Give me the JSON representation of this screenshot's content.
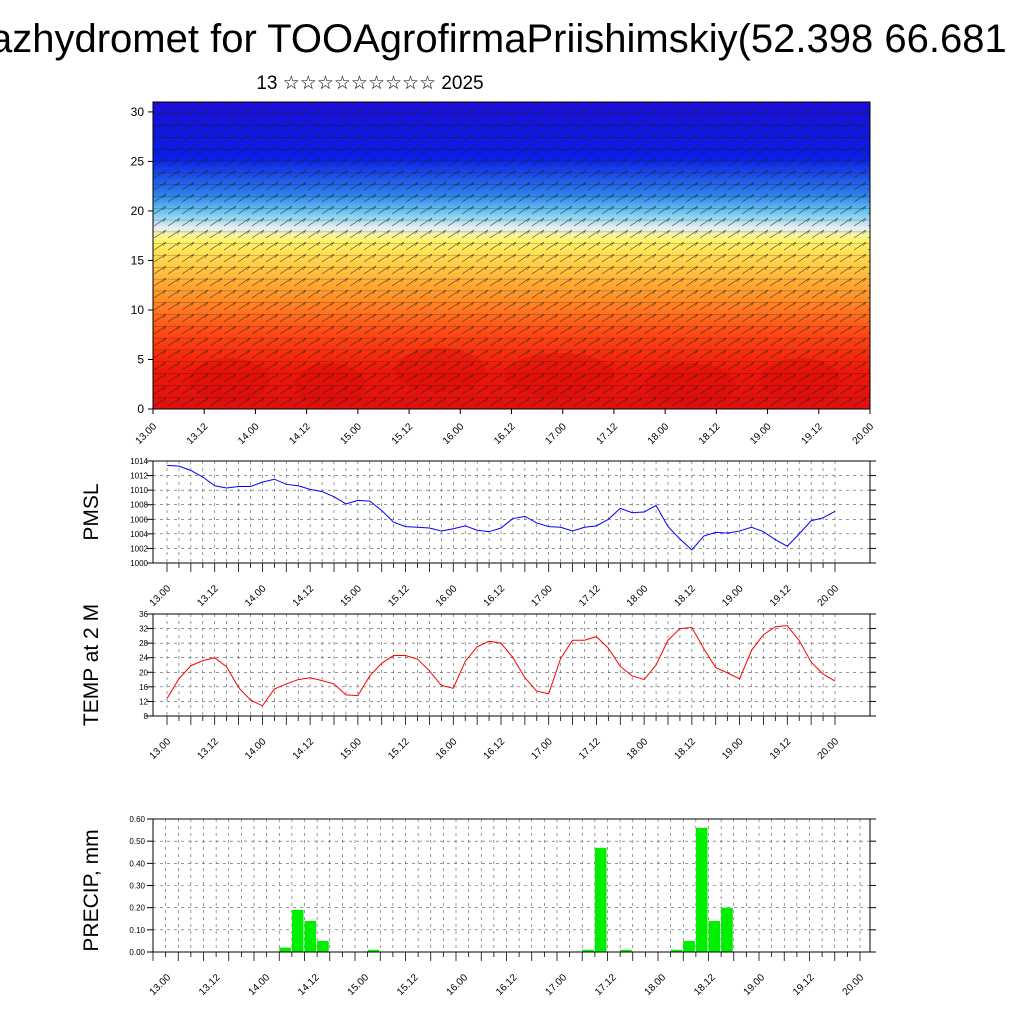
{
  "header": {
    "title": "azhydromet for TOOAgrofirmaPriishimskiy(52.398 66.681",
    "subtitle": "13 ☆☆☆☆☆☆☆☆☆ 2025"
  },
  "chart_data": [
    {
      "type": "heatmap",
      "id": "cross-section",
      "x_ticks": [
        "13.00",
        "13.12",
        "14.00",
        "14.12",
        "15.00",
        "15.12",
        "16.00",
        "16.12",
        "17.00",
        "17.12",
        "18.00",
        "18.12",
        "19.00",
        "19.12",
        "20.00"
      ],
      "y_ticks": [
        0,
        5,
        10,
        15,
        20,
        25,
        30
      ],
      "ylim": [
        0,
        31
      ],
      "colormap": "blue-cyan-white-yellow-orange-red (top to bottom)",
      "overlay": "wind barbs"
    },
    {
      "type": "line",
      "id": "pmsl",
      "ylabel": "PMSL",
      "x_ticks": [
        "13.00",
        "13.12",
        "14.00",
        "14.12",
        "15.00",
        "15.12",
        "16.00",
        "16.12",
        "17.00",
        "17.12",
        "18.00",
        "18.12",
        "19.00",
        "19.12",
        "20.00"
      ],
      "y_ticks": [
        1000,
        1002,
        1004,
        1006,
        1008,
        1010,
        1012,
        1014
      ],
      "ylim": [
        1000,
        1014
      ],
      "series_color": "#0000ff",
      "values": [
        1013.4,
        1013.3,
        1012.7,
        1011.8,
        1010.6,
        1010.3,
        1010.5,
        1010.5,
        1011.1,
        1011.5,
        1010.8,
        1010.6,
        1010.1,
        1009.8,
        1009.1,
        1008.1,
        1008.6,
        1008.5,
        1007.2,
        1005.6,
        1005.0,
        1004.9,
        1004.8,
        1004.4,
        1004.7,
        1005.1,
        1004.5,
        1004.3,
        1004.8,
        1006.1,
        1006.4,
        1005.5,
        1005.0,
        1004.9,
        1004.4,
        1004.9,
        1005.1,
        1006.0,
        1007.5,
        1006.9,
        1007.0,
        1007.9,
        1005.0,
        1003.3,
        1001.8,
        1003.7,
        1004.2,
        1004.1,
        1004.4,
        1004.9,
        1004.3,
        1003.2,
        1002.3,
        1004.0,
        1005.8,
        1006.2,
        1007.1
      ]
    },
    {
      "type": "line",
      "id": "temp2m",
      "ylabel": "TEMP at 2 M",
      "x_ticks": [
        "13.00",
        "13.12",
        "14.00",
        "14.12",
        "15.00",
        "15.12",
        "16.00",
        "16.12",
        "17.00",
        "17.12",
        "18.00",
        "18.12",
        "19.00",
        "19.12",
        "20.00"
      ],
      "y_ticks": [
        8,
        12,
        16,
        20,
        24,
        28,
        32,
        36
      ],
      "ylim": [
        8,
        36
      ],
      "series_color": "#ff0000",
      "values": [
        12.8,
        18.2,
        21.8,
        23.2,
        24.0,
        21.5,
        15.8,
        12.4,
        10.8,
        15.4,
        16.8,
        18.0,
        18.5,
        17.7,
        16.8,
        13.8,
        13.6,
        19.0,
        22.5,
        24.6,
        24.6,
        23.6,
        20.4,
        16.4,
        15.6,
        23.0,
        27.0,
        28.5,
        28.0,
        24.0,
        18.5,
        14.8,
        14.1,
        23.8,
        28.8,
        28.8,
        29.8,
        26.6,
        21.6,
        19.0,
        18.0,
        22.0,
        28.8,
        32.0,
        32.3,
        26.5,
        21.3,
        19.8,
        18.2,
        26.0,
        30.3,
        32.5,
        32.8,
        28.7,
        22.8,
        19.5,
        17.6
      ]
    },
    {
      "type": "bar",
      "id": "precip",
      "ylabel": "PRECIP, mm",
      "x_ticks": [
        "13.00",
        "13.12",
        "14.00",
        "14.12",
        "15.00",
        "15.12",
        "16.00",
        "16.12",
        "17.00",
        "17.12",
        "18.00",
        "18.12",
        "19.00",
        "19.12",
        "20.00"
      ],
      "y_ticks": [
        "0.00",
        "0.10",
        "0.20",
        "0.30",
        "0.40",
        "0.50",
        "0.60"
      ],
      "ylim": [
        0,
        0.6
      ],
      "bar_color": "#00ee00",
      "bars": [
        {
          "x_step": 10,
          "value": 0.02
        },
        {
          "x_step": 11,
          "value": 0.19
        },
        {
          "x_step": 12,
          "value": 0.14
        },
        {
          "x_step": 13,
          "value": 0.05
        },
        {
          "x_step": 17,
          "value": 0.01
        },
        {
          "x_step": 34,
          "value": 0.01
        },
        {
          "x_step": 35,
          "value": 0.47
        },
        {
          "x_step": 37,
          "value": 0.01
        },
        {
          "x_step": 41,
          "value": 0.01
        },
        {
          "x_step": 42,
          "value": 0.05
        },
        {
          "x_step": 43,
          "value": 0.56
        },
        {
          "x_step": 44,
          "value": 0.14
        },
        {
          "x_step": 45,
          "value": 0.2
        }
      ]
    }
  ]
}
